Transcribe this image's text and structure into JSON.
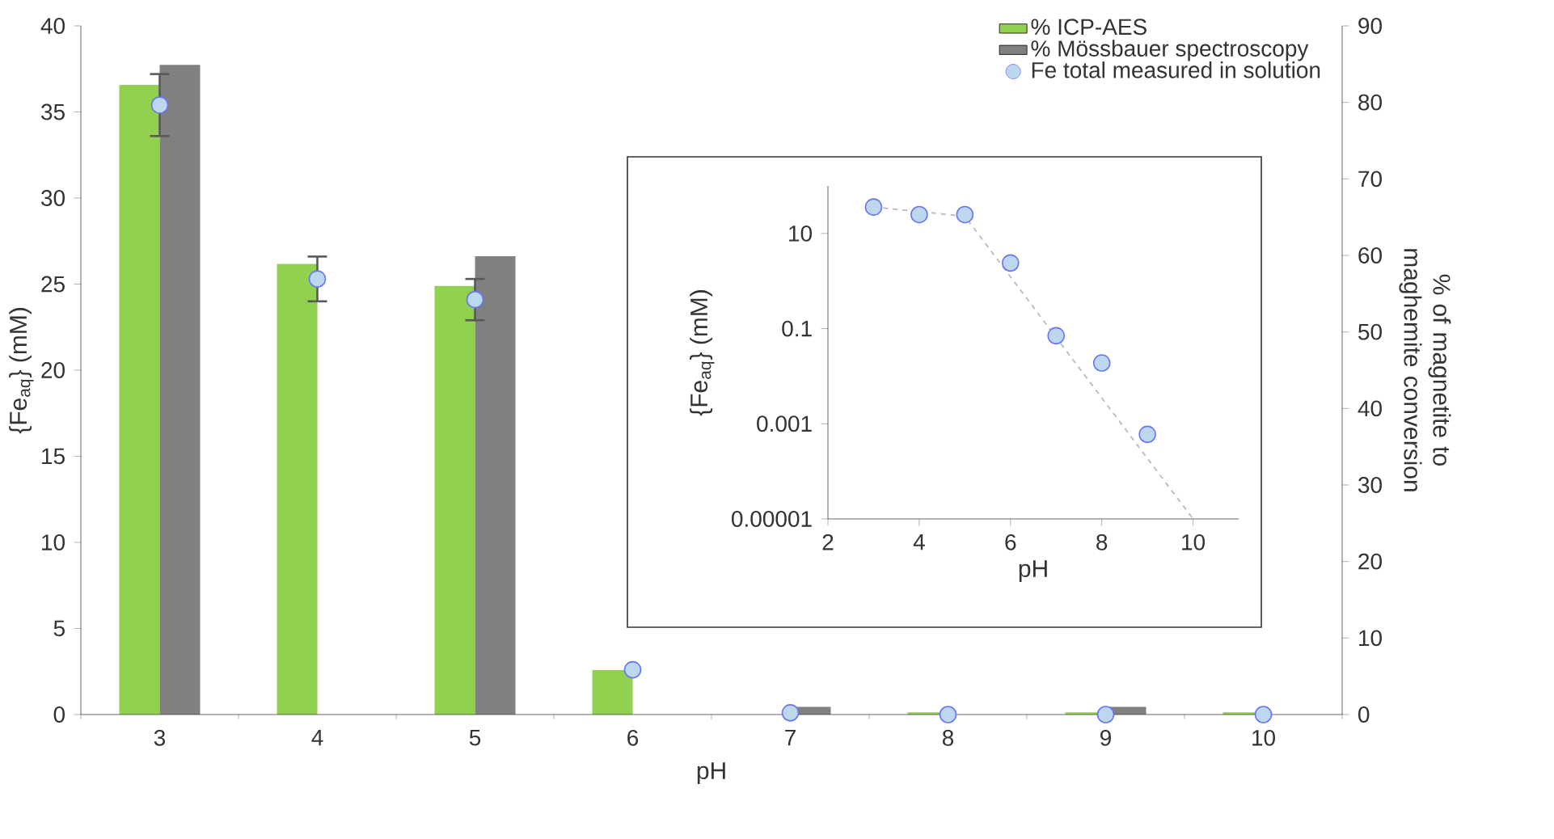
{
  "chart_data": [
    {
      "type": "bar",
      "categories": [
        "3",
        "4",
        "5",
        "6",
        "7",
        "8",
        "9",
        "10"
      ],
      "xlabel": "pH",
      "ylabel": "{Fe$_{aq}$} (mM)",
      "y2label": "% of magnetite to maghemite conversion",
      "ylim": [
        0,
        40
      ],
      "yticks": [
        0,
        5,
        10,
        15,
        20,
        25,
        30,
        35,
        40
      ],
      "y2lim": [
        0,
        90
      ],
      "y2ticks": [
        0,
        10,
        20,
        30,
        40,
        50,
        60,
        70,
        80,
        90
      ],
      "legend": "top right",
      "series": [
        {
          "name": "% ICP-AES",
          "color": "#92d050",
          "axis": "y2",
          "values": [
            82.3,
            58.9,
            56.0,
            5.8,
            null,
            0.3,
            0.3,
            0.3
          ]
        },
        {
          "name": "% Mössbauer spectroscopy",
          "color": "#808080",
          "axis": "y2",
          "values": [
            84.9,
            null,
            59.9,
            null,
            1,
            null,
            1,
            null
          ]
        },
        {
          "name": "Fe total measured in solution",
          "type": "scatter",
          "color": "#bdd7ee",
          "x": [
            "3",
            "4",
            "5",
            "6",
            "7",
            "8",
            "9",
            "10"
          ],
          "values": [
            35.4,
            25.3,
            24.1,
            2.6,
            0.1,
            0,
            0,
            0
          ],
          "errors": [
            1.8,
            1.3,
            1.2,
            null,
            null,
            null,
            null,
            null
          ]
        }
      ]
    },
    {
      "type": "scatter",
      "xlabel": "pH",
      "ylabel": "{Fe$_{aq}$} (mM)",
      "log": "y",
      "xlim": [
        2,
        11
      ],
      "xticks": [
        2,
        4,
        6,
        8,
        10
      ],
      "ylim": [
        1e-05,
        100
      ],
      "yticks": [
        10,
        0.1,
        0.001,
        {
          "value": 1e-05,
          "label": "0.00001"
        }
      ],
      "series": [
        {
          "type": "scatter",
          "color": "#bdd7ee",
          "x": [
            3,
            4,
            5,
            6,
            7,
            8,
            9
          ],
          "values": [
            36,
            25,
            25,
            2.4,
            0.071,
            0.019,
            0.0006
          ]
        },
        {
          "type": "line",
          "line_style": "dashed",
          "color": "#bfbfbf",
          "x": [
            3,
            5,
            10
          ],
          "values": [
            36,
            23,
            1e-05
          ]
        }
      ]
    }
  ]
}
